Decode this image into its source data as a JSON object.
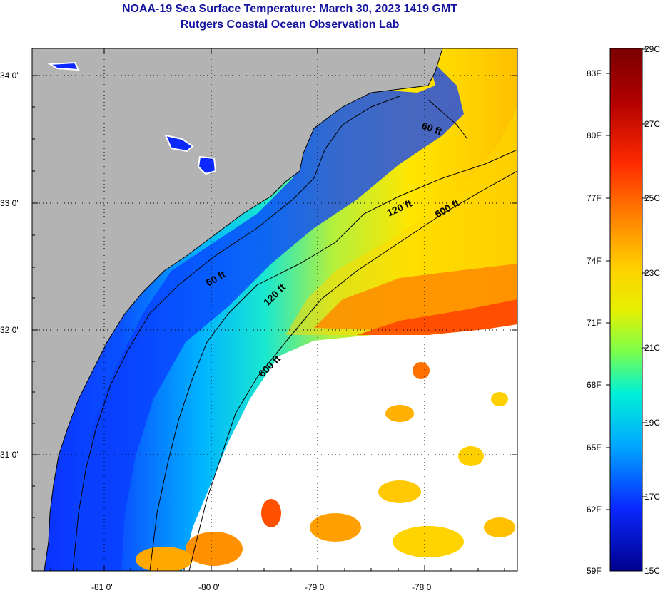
{
  "title": {
    "line1": "NOAA-19 Sea Surface Temperature:  March 30, 2023 1419 GMT",
    "line2": "Rutgers Coastal Ocean Observation Lab"
  },
  "lat_labels": [
    "34 0'",
    "33 0'",
    "32 0'",
    "31 0'"
  ],
  "lon_labels": [
    "-81 0'",
    "-80 0'",
    "-79 0'",
    "-78 0'"
  ],
  "contours": {
    "c60_upper": "60 ft",
    "c60_lower": "60 ft",
    "c120_upper": "120 ft",
    "c120_lower": "120 ft",
    "c600_upper": "600 ft",
    "c600_lower": "600 ft"
  },
  "colorbar": {
    "fahrenheit": [
      "83F",
      "80F",
      "77F",
      "74F",
      "71F",
      "68F",
      "65F",
      "62F",
      "59F"
    ],
    "celsius": [
      "29C",
      "27C",
      "25C",
      "23C",
      "21C",
      "19C",
      "17C",
      "15C"
    ],
    "colors": [
      "#7a0000",
      "#d40000",
      "#ff4a00",
      "#ff9a00",
      "#ffe600",
      "#aaff32",
      "#00e8d8",
      "#008cff",
      "#0a2cff",
      "#00008c"
    ]
  },
  "colors": {
    "land": "#b3b3b3",
    "cloud": "#ffffff",
    "title": "#1414a0"
  }
}
